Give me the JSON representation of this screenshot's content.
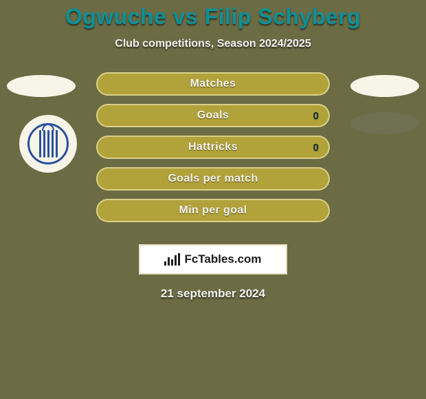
{
  "colors": {
    "background": "#6b6b44",
    "title": "#0e9098",
    "subtitle": "#f2f2f2",
    "ellipse_left": "#f7f4e8",
    "ellipse_right": "#f7f4e8",
    "ellipse_right2": "#6f7052",
    "club_badge_bg": "#f7f4e8",
    "club_badge_border": "#2a4f9c",
    "club_badge_stripe": "#2a4f9c",
    "bar_fill": "#b2a23a",
    "bar_border": "#d9d08a",
    "bar_label": "#f2f2f2",
    "bar_value": "#16323a",
    "branding_bg": "#ffffff",
    "branding_border": "#e6e0c0",
    "branding_text": "#1a1a1a",
    "date": "#f2f2f2"
  },
  "title": "Ogwuche vs Filip Schyberg",
  "subtitle": "Club competitions, Season 2024/2025",
  "bars": [
    {
      "label": "Matches",
      "value": ""
    },
    {
      "label": "Goals",
      "value": "0"
    },
    {
      "label": "Hattricks",
      "value": "0"
    },
    {
      "label": "Goals per match",
      "value": ""
    },
    {
      "label": "Min per goal",
      "value": ""
    }
  ],
  "branding_text": "FcTables.com",
  "date": "21 september 2024",
  "bar_chart_icon_heights": [
    6,
    12,
    9,
    15,
    18
  ]
}
